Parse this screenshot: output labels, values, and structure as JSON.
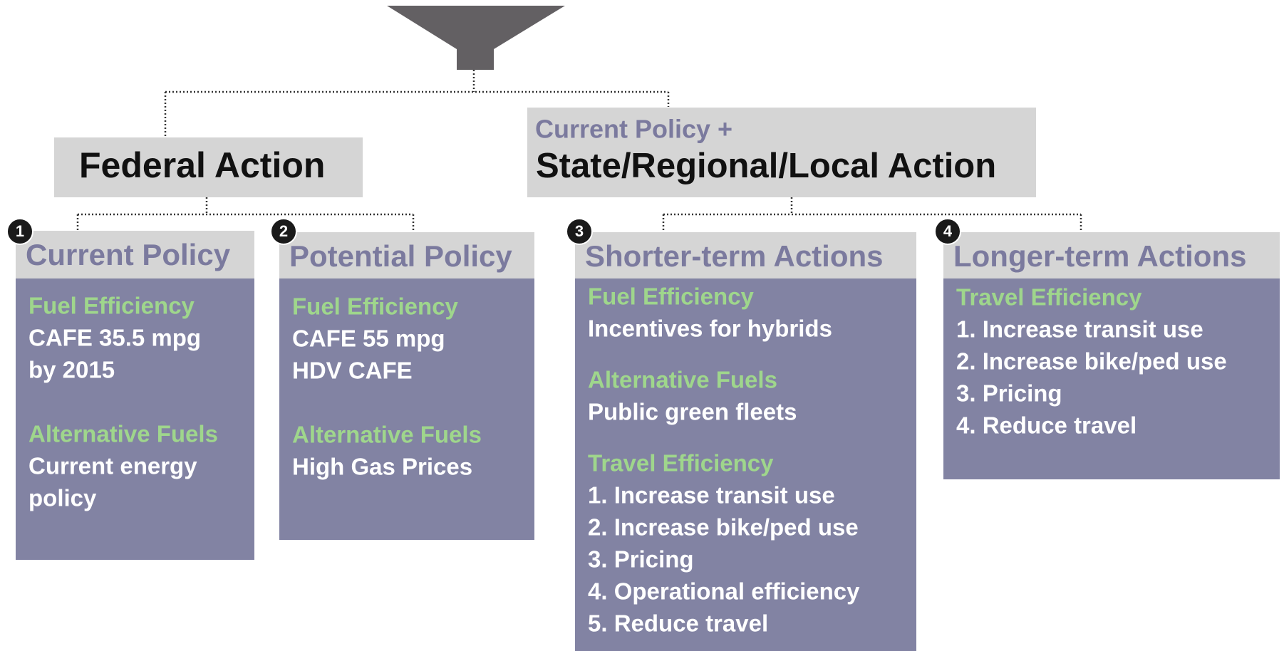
{
  "federal": {
    "title": "Federal Action"
  },
  "state": {
    "subtitle": "Current Policy +",
    "title": "State/Regional/Local Action"
  },
  "boxes": [
    {
      "number": "1",
      "title": "Current Policy",
      "sections": [
        {
          "heading": "Fuel Efficiency",
          "lines": [
            "CAFE 35.5 mpg",
            "by 2015"
          ]
        },
        {
          "heading": "Alternative Fuels",
          "lines": [
            "Current energy",
            "policy"
          ]
        }
      ]
    },
    {
      "number": "2",
      "title": "Potential Policy",
      "sections": [
        {
          "heading": "Fuel Efficiency",
          "lines": [
            "CAFE 55 mpg",
            "HDV CAFE"
          ]
        },
        {
          "heading": "Alternative Fuels",
          "lines": [
            "High Gas Prices"
          ]
        }
      ]
    },
    {
      "number": "3",
      "title": "Shorter-term Actions",
      "sections": [
        {
          "heading": "Fuel Efficiency",
          "lines": [
            "Incentives for hybrids"
          ]
        },
        {
          "heading": "Alternative Fuels",
          "lines": [
            "Public green fleets"
          ]
        },
        {
          "heading": "Travel Efficiency",
          "lines": [
            "1. Increase transit use",
            "2. Increase bike/ped use",
            "3. Pricing",
            "4. Operational efficiency",
            "5. Reduce travel"
          ]
        }
      ]
    },
    {
      "number": "4",
      "title": "Longer-term Actions",
      "sections": [
        {
          "heading": "Travel Efficiency",
          "lines": [
            "1. Increase transit use",
            "2. Increase bike/ped use",
            "3. Pricing",
            "4. Reduce travel"
          ]
        }
      ]
    }
  ]
}
